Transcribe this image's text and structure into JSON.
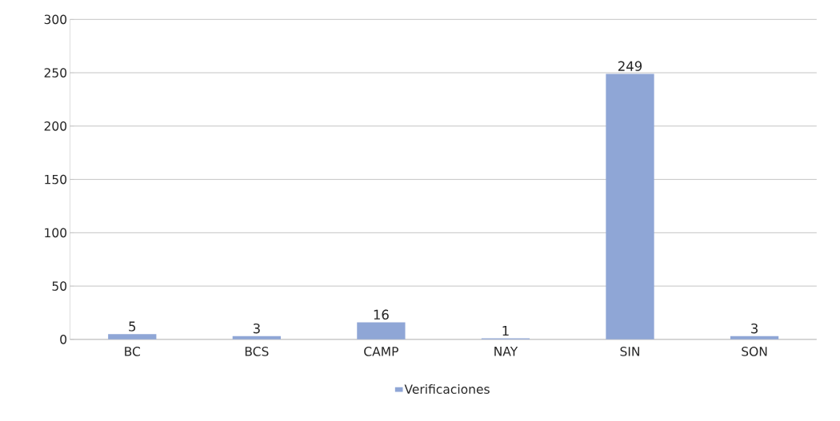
{
  "chart_data": {
    "type": "bar",
    "categories": [
      "BC",
      "BCS",
      "CAMP",
      "NAY",
      "SIN",
      "SON"
    ],
    "series": [
      {
        "name": "Verificaciones",
        "color": "#8fa6d6",
        "values": [
          5,
          3,
          16,
          1,
          249,
          3
        ]
      }
    ],
    "ylim": [
      0,
      300
    ],
    "yticks": [
      0,
      50,
      100,
      150,
      200,
      250,
      300
    ],
    "grid": "y",
    "legend": "bottom",
    "data_labels": true
  }
}
